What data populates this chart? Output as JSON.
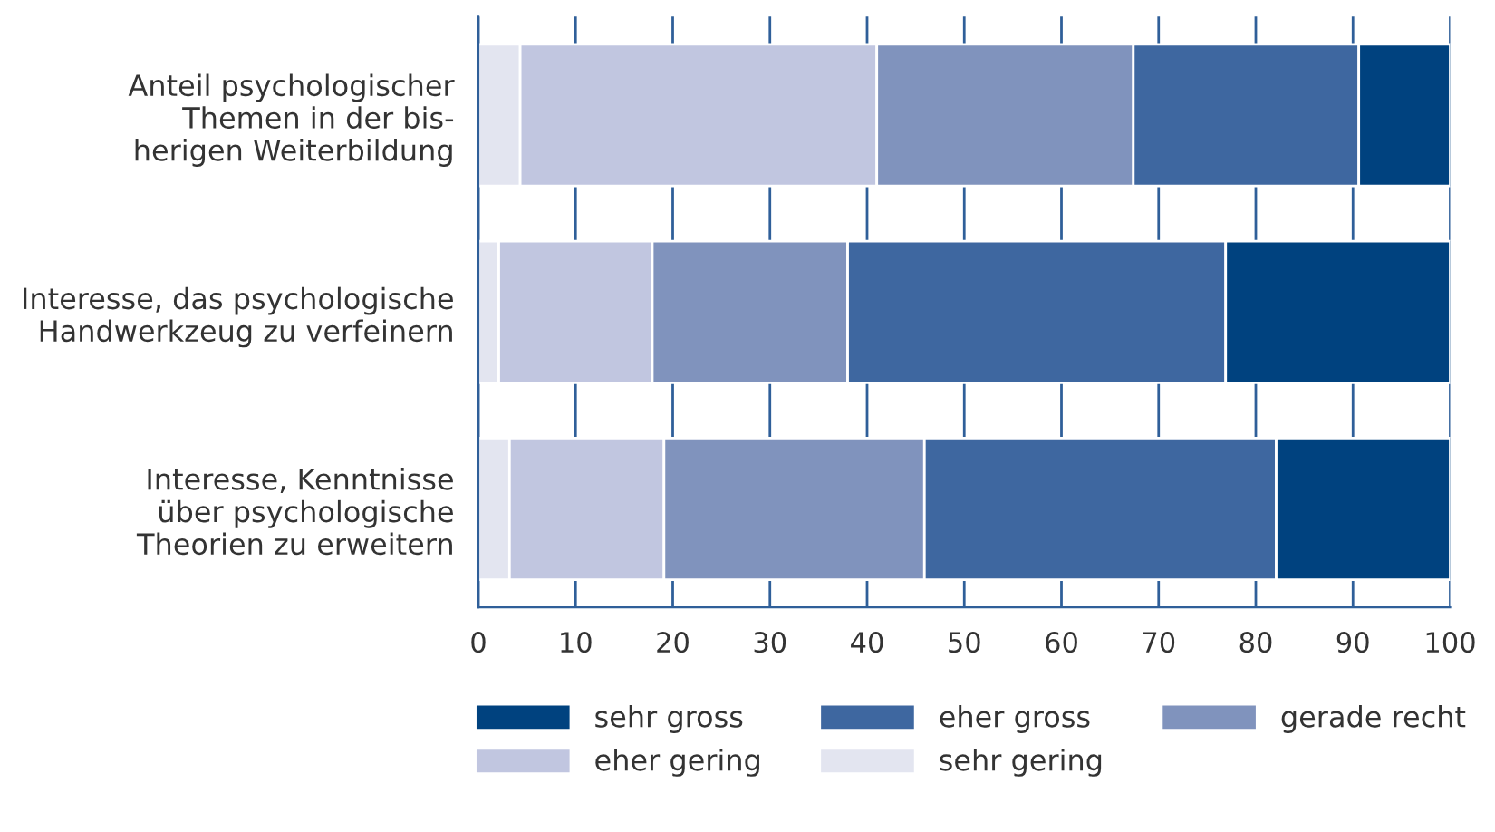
{
  "chart_data": {
    "type": "bar",
    "orientation": "horizontal",
    "stacked": true,
    "categories": [
      "Anteil psychologischer\nThemen in der bis-\nherigen Weiterbildung",
      "Interesse, das psychologische\nHandwerkzeug zu verfeinern",
      "Interesse, Kenntnisse\nüber psychologische\nTheorien zu erweitern"
    ],
    "series": [
      {
        "name": "sehr gering",
        "color": "#e3e5f0",
        "values": [
          4.3,
          2.1,
          3.2
        ]
      },
      {
        "name": "eher gering",
        "color": "#c1c6e0",
        "values": [
          36.7,
          15.8,
          15.9
        ]
      },
      {
        "name": "gerade recht",
        "color": "#8093bd",
        "values": [
          26.4,
          20.1,
          26.8
        ]
      },
      {
        "name": "eher gross",
        "color": "#3e67a0",
        "values": [
          23.2,
          38.9,
          36.2
        ]
      },
      {
        "name": "sehr gross",
        "color": "#00427f",
        "values": [
          9.4,
          23.1,
          17.9
        ]
      }
    ],
    "xlim": [
      0,
      100
    ],
    "xticks": [
      0,
      10,
      20,
      30,
      40,
      50,
      60,
      70,
      80,
      90,
      100
    ],
    "grid": "x",
    "legend": "bottom"
  }
}
